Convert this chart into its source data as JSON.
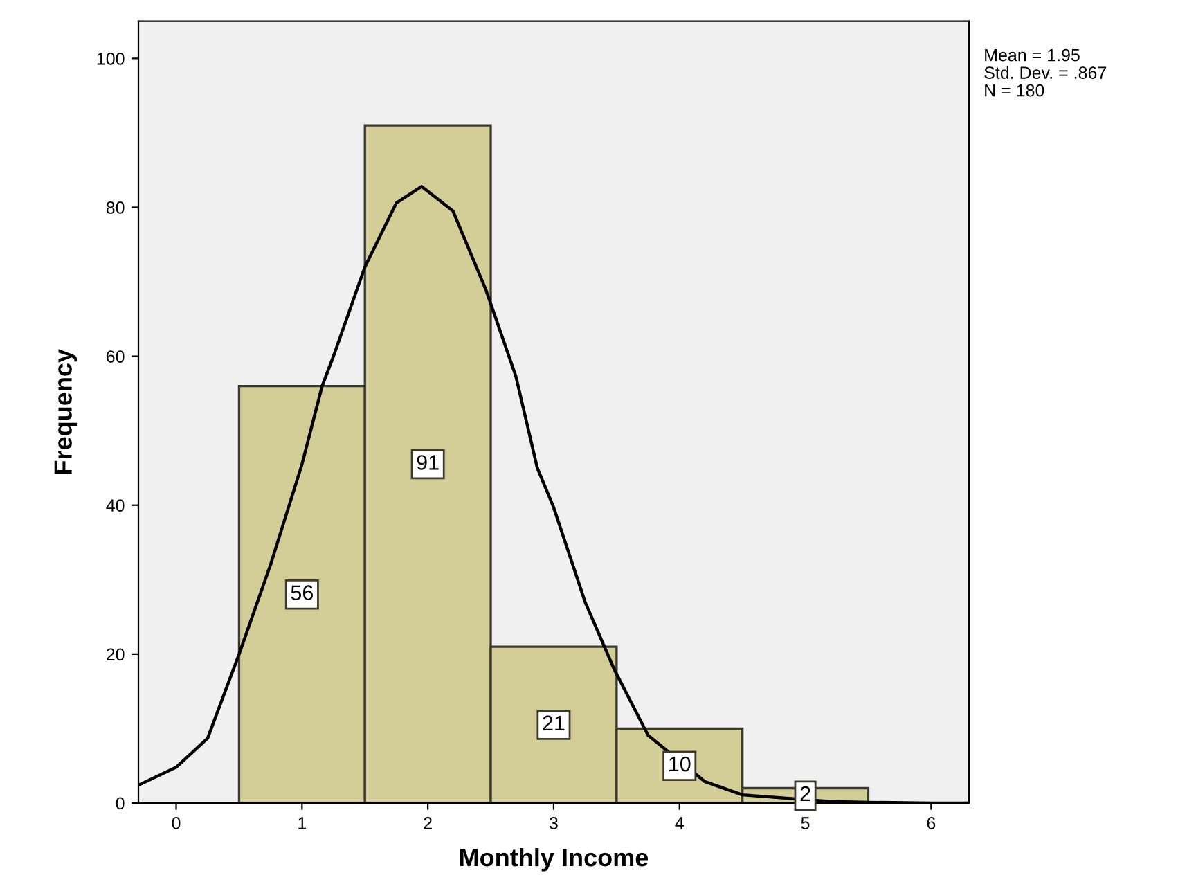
{
  "chart_data": {
    "type": "histogram",
    "xlabel": "Monthly Income",
    "ylabel": "Frequency",
    "bins": [
      0.5,
      1.5,
      2.5,
      3.5,
      4.5,
      5.5
    ],
    "values": [
      56,
      91,
      21,
      10,
      2
    ],
    "color": "#d3ce98",
    "value_labels": [
      "56",
      "91",
      "21",
      "10",
      "2"
    ],
    "series": [
      {
        "type": "line",
        "color": "#000000",
        "x": [
          -0.3,
          0,
          0.25,
          0.5,
          0.75,
          1.0,
          1.16,
          1.25,
          1.5,
          1.75,
          1.95,
          2.2,
          2.46,
          2.7,
          2.87,
          3.0,
          3.25,
          3.48,
          3.75,
          4.2,
          4.5,
          5.2,
          5.5,
          6.0,
          6.3
        ],
        "values": [
          2.4,
          4.8,
          8.7,
          20,
          32,
          45.5,
          56,
          60,
          72,
          80.6,
          82.8,
          79.5,
          69,
          57.3,
          45,
          39.7,
          27,
          18,
          9.1,
          2.9,
          1.1,
          0.2,
          0.1,
          0,
          0
        ]
      }
    ],
    "xlim": [
      -0.3,
      6.3
    ],
    "xticks": [
      0,
      1,
      2,
      3,
      4,
      5,
      6
    ],
    "ylim": [
      0,
      105
    ],
    "yticks": [
      0,
      20,
      40,
      60,
      80,
      100
    ],
    "grid": false,
    "annotations": [
      "Mean = 1.95",
      "Std. Dev. = .867",
      "N = 180"
    ]
  }
}
